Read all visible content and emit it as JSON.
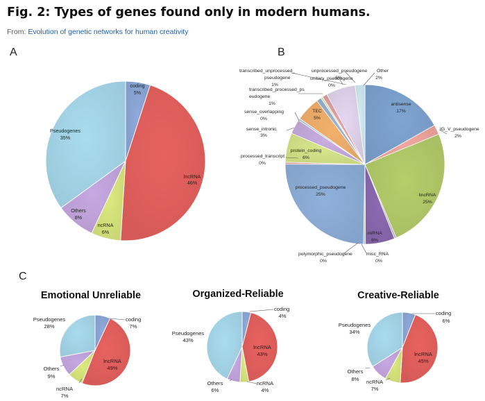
{
  "figure": {
    "title": "Fig. 2: Types of genes found only in modern humans.",
    "from_prefix": "From: ",
    "from_link": "Evolution of genetic networks for human creativity"
  },
  "panel_labels": [
    "A",
    "B",
    "C"
  ],
  "colors": {
    "coding": "#8eaadb",
    "lncRNA": "#e8625f",
    "ncRNA": "#dcea7f",
    "Others": "#c7a9e2",
    "Pseudogenes": "#a9dcef",
    "antisense": "#7fa5d3",
    "IG_V_pseudogene": "#f2a7a0",
    "lincRNA": "#b5cf6b",
    "misc_RNA": "#c4b2d7",
    "miRNA": "#8d6ab3",
    "polymorphic_pseudogene": "#b7cde5",
    "processed_pseudogene": "#8fb1dc",
    "processed_transcript": "#e6a7a3",
    "protein_coding": "#d9e88c",
    "sense_intronic": "#c9aee0",
    "sense_overlapping": "#a8cfe0",
    "TEC": "#f4b16d",
    "transcribed_processed_pseudogene": "#9db4d6",
    "transcribed_unprocessed_pseudogene": "#e4a3a6",
    "unitary_pseudogene": "#e0e8b5",
    "unprocessed_pseudogene": "#e4d7f0",
    "Other": "#d2ecf3"
  },
  "chart_data": [
    {
      "panel": "A",
      "type": "pie",
      "title": "",
      "slices": [
        {
          "label": "coding",
          "value": 5
        },
        {
          "label": "lncRNA",
          "value": 46
        },
        {
          "label": "ncRNA",
          "value": 6
        },
        {
          "label": "Others",
          "value": 8
        },
        {
          "label": "Pseudogenes",
          "value": 35
        }
      ]
    },
    {
      "panel": "B",
      "type": "pie",
      "title": "",
      "slices": [
        {
          "label": "antisense",
          "value": 17
        },
        {
          "label": "IG_V_pseudogene",
          "value": 2
        },
        {
          "label": "lincRNA",
          "value": 25
        },
        {
          "label": "misc_RNA",
          "value": 0
        },
        {
          "label": "miRNA",
          "value": 6
        },
        {
          "label": "polymorphic_pseudogene",
          "value": 0
        },
        {
          "label": "processed_pseudogene",
          "value": 25
        },
        {
          "label": "processed_transcript",
          "value": 0
        },
        {
          "label": "protein_coding",
          "value": 6
        },
        {
          "label": "sense_intronic",
          "value": 3
        },
        {
          "label": "sense_overlapping",
          "value": 0
        },
        {
          "label": "TEC",
          "value": 5
        },
        {
          "label": "transcribed_processed_pseudogene",
          "value": 1
        },
        {
          "label": "unitary_pseudogene",
          "value": 0
        },
        {
          "label": "transcribed_unprocessed_pseudogene",
          "value": 1
        },
        {
          "label": "unprocessed_pseudogene",
          "value": 6
        },
        {
          "label": "Other",
          "value": 2
        }
      ]
    },
    {
      "panel": "C1",
      "type": "pie",
      "title": "Emotional Unreliable",
      "slices": [
        {
          "label": "coding",
          "value": 7
        },
        {
          "label": "lncRNA",
          "value": 49
        },
        {
          "label": "ncRNA",
          "value": 7
        },
        {
          "label": "Others",
          "value": 9
        },
        {
          "label": "Pseudogenes",
          "value": 28
        }
      ]
    },
    {
      "panel": "C2",
      "type": "pie",
      "title": "Organized-Reliable",
      "slices": [
        {
          "label": "coding",
          "value": 4
        },
        {
          "label": "lncRNA",
          "value": 43
        },
        {
          "label": "ncRNA",
          "value": 4
        },
        {
          "label": "Others",
          "value": 6
        },
        {
          "label": "Pseudogenes",
          "value": 43
        }
      ]
    },
    {
      "panel": "C3",
      "type": "pie",
      "title": "Creative-Reliable",
      "slices": [
        {
          "label": "coding",
          "value": 6
        },
        {
          "label": "lncRNA",
          "value": 45
        },
        {
          "label": "ncRNA",
          "value": 7
        },
        {
          "label": "Others",
          "value": 8
        },
        {
          "label": "Pseudogenes",
          "value": 34
        }
      ]
    }
  ]
}
